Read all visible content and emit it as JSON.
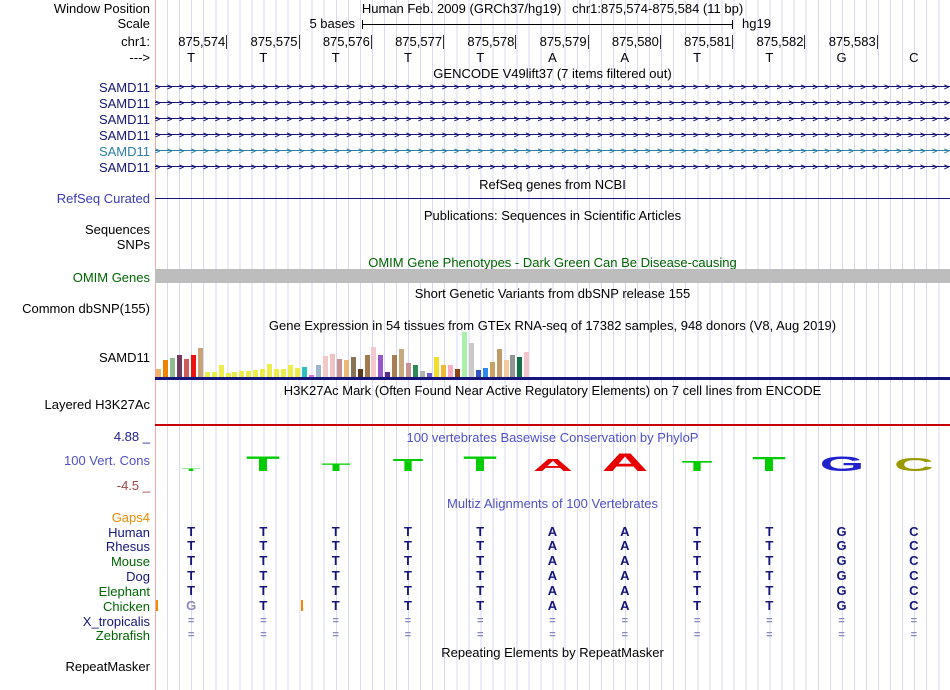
{
  "header": {
    "window_position_label": "Window Position",
    "title": "Human Feb. 2009 (GRCh37/hg19)   chr1:875,574-875,584 (11 bp)",
    "scale_label": "Scale",
    "scale_text": "5 bases",
    "assembly": "hg19",
    "chrom_label": "chr1:",
    "strand_label": "--->",
    "coordinates": [
      "875,574",
      "875,575",
      "875,576",
      "875,577",
      "875,578",
      "875,579",
      "875,580",
      "875,581",
      "875,582",
      "875,583"
    ],
    "sequence": [
      "T",
      "T",
      "T",
      "T",
      "T",
      "A",
      "A",
      "T",
      "T",
      "G",
      "C"
    ]
  },
  "gencode": {
    "title": "GENCODE V49lift37 (7 items filtered out)",
    "transcripts": [
      {
        "label": "SAMD11",
        "color": "#15157b"
      },
      {
        "label": "SAMD11",
        "color": "#15157b"
      },
      {
        "label": "SAMD11",
        "color": "#15157b"
      },
      {
        "label": "SAMD11",
        "color": "#15157b"
      },
      {
        "label": "SAMD11",
        "color": "#2d7fa6"
      },
      {
        "label": "SAMD11",
        "color": "#15157b"
      }
    ]
  },
  "refseq": {
    "title": "RefSeq genes from NCBI",
    "label": "RefSeq Curated",
    "label_color": "#3a3ab8",
    "line_color": "#15157b"
  },
  "publications": {
    "title": "Publications: Sequences in Scientific Articles",
    "label": "Sequences"
  },
  "snps": {
    "label": "SNPs"
  },
  "omim": {
    "title": "OMIM Gene Phenotypes - Dark Green Can Be Disease-causing",
    "label": "OMIM Genes",
    "title_color": "#006400",
    "bar_color": "#bdbdbd"
  },
  "dbsnp": {
    "title": "Short Genetic Variants from dbSNP release 155",
    "label": "Common dbSNP(155)"
  },
  "gtex": {
    "title": "Gene Expression in 54 tissues from GTEx RNA-seq of 17382 samples, 948 donors (V8, Aug 2019)",
    "gene_label": "SAMD11",
    "baseline_color": "#15157b",
    "bars": [
      {
        "h": 8,
        "c": "#f5b266"
      },
      {
        "h": 17,
        "c": "#ef8300"
      },
      {
        "h": 19,
        "c": "#8fbc8f"
      },
      {
        "h": 22,
        "c": "#71395b"
      },
      {
        "h": 18,
        "c": "#cd5c5c"
      },
      {
        "h": 22,
        "c": "#ee1111"
      },
      {
        "h": 29,
        "c": "#c9a277"
      },
      {
        "h": 5,
        "c": "#eded4a"
      },
      {
        "h": 5,
        "c": "#eded4a"
      },
      {
        "h": 12,
        "c": "#eded4a"
      },
      {
        "h": 4,
        "c": "#eded4a"
      },
      {
        "h": 5,
        "c": "#eded4a"
      },
      {
        "h": 6,
        "c": "#eded4a"
      },
      {
        "h": 6,
        "c": "#eded4a"
      },
      {
        "h": 7,
        "c": "#eded4a"
      },
      {
        "h": 8,
        "c": "#eded4a"
      },
      {
        "h": 13,
        "c": "#eded4a"
      },
      {
        "h": 8,
        "c": "#eded4a"
      },
      {
        "h": 8,
        "c": "#eded4a"
      },
      {
        "h": 12,
        "c": "#eded4a"
      },
      {
        "h": 9,
        "c": "#eded4a"
      },
      {
        "h": 10,
        "c": "#2fbfbf"
      },
      {
        "h": 2,
        "c": "#e667e6"
      },
      {
        "h": 12,
        "c": "#9fb6cd"
      },
      {
        "h": 21,
        "c": "#f3c9c9"
      },
      {
        "h": 23,
        "c": "#efc3c3"
      },
      {
        "h": 18,
        "c": "#c79292"
      },
      {
        "h": 17,
        "c": "#e8b878"
      },
      {
        "h": 20,
        "c": "#8b7355"
      },
      {
        "h": 8,
        "c": "#5f3a1d"
      },
      {
        "h": 22,
        "c": "#a27a4e"
      },
      {
        "h": 30,
        "c": "#f3c9cf"
      },
      {
        "h": 22,
        "c": "#9557cc"
      },
      {
        "h": 5,
        "c": "#5a2a8c"
      },
      {
        "h": 22,
        "c": "#a97d52"
      },
      {
        "h": 28,
        "c": "#c7a87e"
      },
      {
        "h": 14,
        "c": "#c79292"
      },
      {
        "h": 12,
        "c": "#2e8b57"
      },
      {
        "h": 6,
        "c": "#b3b3b3"
      },
      {
        "h": 4,
        "c": "#6a5acd"
      },
      {
        "h": 20,
        "c": "#f2de2a"
      },
      {
        "h": 12,
        "c": "#efbb37"
      },
      {
        "h": 12,
        "c": "#f3afc0"
      },
      {
        "h": 8,
        "c": "#8b4513"
      },
      {
        "h": 45,
        "c": "#a9f0a9"
      },
      {
        "h": 34,
        "c": "#c9c9c9"
      },
      {
        "h": 7,
        "c": "#3353c4"
      },
      {
        "h": 9,
        "c": "#2a8cef"
      },
      {
        "h": 15,
        "c": "#c9a065"
      },
      {
        "h": 28,
        "c": "#bf9a6a"
      },
      {
        "h": 17,
        "c": "#f4c99c"
      },
      {
        "h": 22,
        "c": "#939393"
      },
      {
        "h": 20,
        "c": "#156e45"
      },
      {
        "h": 25,
        "c": "#f1c3cb"
      }
    ]
  },
  "h3k27ac": {
    "title": "H3K27Ac Mark (Often Found Near Active Regulatory Elements) on 7 cell lines from ENCODE",
    "label": "Layered H3K27Ac",
    "line_color": "#c80000"
  },
  "conservation": {
    "title": "100 vertebrates Basewise Conservation by PhyloP",
    "title_color": "#5050c8",
    "label": "100 Vert. Cons",
    "max_label": "4.88 _",
    "min_label": "-4.5 _",
    "max_color": "#1f1f8f",
    "min_color": "#a04545",
    "letters": [
      {
        "ch": "T",
        "c": "#00cc00",
        "w": 26,
        "h": 3
      },
      {
        "ch": "T",
        "c": "#00cc00",
        "w": 46,
        "h": 16
      },
      {
        "ch": "T",
        "c": "#00cc00",
        "w": 40,
        "h": 8
      },
      {
        "ch": "T",
        "c": "#00cc00",
        "w": 42,
        "h": 13
      },
      {
        "ch": "T",
        "c": "#00cc00",
        "w": 46,
        "h": 16
      },
      {
        "ch": "A",
        "c": "#e60000",
        "w": 46,
        "h": 13
      },
      {
        "ch": "A",
        "c": "#e60000",
        "w": 54,
        "h": 19
      },
      {
        "ch": "T",
        "c": "#00cc00",
        "w": 42,
        "h": 11
      },
      {
        "ch": "T",
        "c": "#00cc00",
        "w": 46,
        "h": 15
      },
      {
        "ch": "G",
        "c": "#2222cc",
        "w": 48,
        "h": 16
      },
      {
        "ch": "C",
        "c": "#9a9a00",
        "w": 46,
        "h": 14
      }
    ]
  },
  "multiz": {
    "title": "Multiz Alignments of 100 Vertebrates",
    "title_color": "#5050c8",
    "gaps": {
      "label": "Gaps",
      "value": "4",
      "color": "#ef8c00"
    },
    "letter_color": "#15157b",
    "eq_color": "#8a8abe",
    "species": [
      {
        "name": "Human",
        "label_color": "#15157b",
        "bases": [
          "T",
          "T",
          "T",
          "T",
          "T",
          "A",
          "A",
          "T",
          "T",
          "G",
          "C"
        ]
      },
      {
        "name": "Rhesus",
        "label_color": "#15157b",
        "bases": [
          "T",
          "T",
          "T",
          "T",
          "T",
          "A",
          "A",
          "T",
          "T",
          "G",
          "C"
        ]
      },
      {
        "name": "Mouse",
        "label_color": "#006400",
        "bases": [
          "T",
          "T",
          "T",
          "T",
          "T",
          "A",
          "A",
          "T",
          "T",
          "G",
          "C"
        ]
      },
      {
        "name": "Dog",
        "label_color": "#15157b",
        "bases": [
          "T",
          "T",
          "T",
          "T",
          "T",
          "A",
          "A",
          "T",
          "T",
          "G",
          "C"
        ]
      },
      {
        "name": "Elephant",
        "label_color": "#006400",
        "bases": [
          "T",
          "T",
          "T",
          "T",
          "T",
          "A",
          "A",
          "T",
          "T",
          "G",
          "C"
        ]
      },
      {
        "name": "Chicken",
        "label_color": "#006400",
        "bases": [
          "G",
          "T",
          "T",
          "T",
          "T",
          "A",
          "A",
          "T",
          "T",
          "G",
          "C"
        ],
        "base_colors": {
          "0": "#8a8ac0"
        },
        "gap_tick_offsets": [
          1,
          146
        ],
        "gap_tick_color": "#ef8c00"
      },
      {
        "name": "X_tropicalis",
        "label_color": "#15157b",
        "bases": [
          "=",
          "=",
          "=",
          "=",
          "=",
          "=",
          "=",
          "=",
          "=",
          "=",
          "="
        ]
      },
      {
        "name": "Zebrafish",
        "label_color": "#006400",
        "bases": [
          "=",
          "=",
          "=",
          "=",
          "=",
          "=",
          "=",
          "=",
          "=",
          "=",
          "="
        ]
      }
    ]
  },
  "repeatmasker": {
    "title": "Repeating Elements by RepeatMasker",
    "label": "RepeatMasker"
  }
}
